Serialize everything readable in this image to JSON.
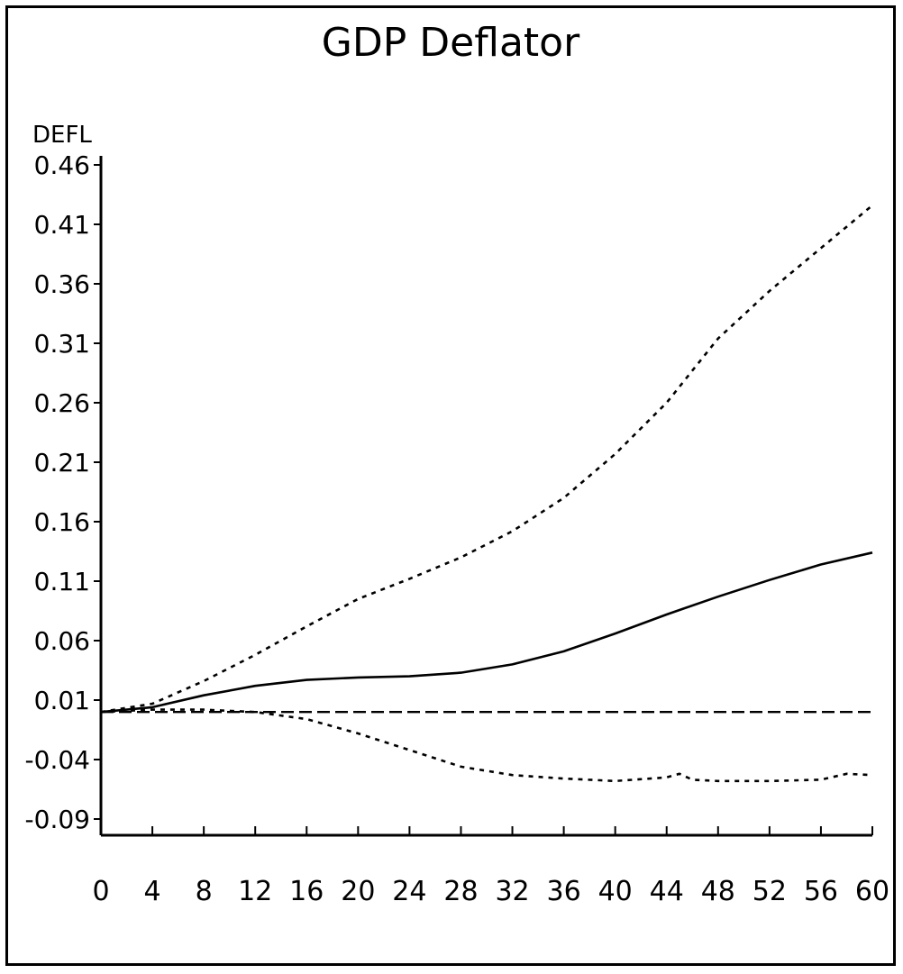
{
  "chart_data": {
    "type": "line",
    "title": "GDP Deflator",
    "ylabel": "DEFL",
    "xlabel": "",
    "xlim": [
      0,
      60
    ],
    "ylim": [
      -0.09,
      0.46
    ],
    "x_ticks": [
      0,
      4,
      8,
      12,
      16,
      20,
      24,
      28,
      32,
      36,
      40,
      44,
      48,
      52,
      56,
      60
    ],
    "x_tick_labels": [
      "0",
      "4",
      "8",
      "12",
      "16",
      "20",
      "24",
      "28",
      "32",
      "36",
      "40",
      "44",
      "48",
      "52",
      "56",
      "60"
    ],
    "y_ticks": [
      -0.09,
      -0.04,
      0.01,
      0.06,
      0.11,
      0.16,
      0.21,
      0.26,
      0.31,
      0.36,
      0.41,
      0.46
    ],
    "y_tick_labels": [
      "-0.09",
      "-0.04",
      "0.01",
      "0.06",
      "0.11",
      "0.16",
      "0.21",
      "0.26",
      "0.31",
      "0.36",
      "0.41",
      "0.46"
    ],
    "grid": false,
    "series": [
      {
        "style": "solid",
        "x": [
          0,
          4,
          8,
          12,
          16,
          20,
          24,
          28,
          32,
          36,
          40,
          44,
          48,
          52,
          56,
          60
        ],
        "values": [
          0.0,
          0.004,
          0.014,
          0.022,
          0.027,
          0.029,
          0.03,
          0.033,
          0.04,
          0.051,
          0.066,
          0.082,
          0.097,
          0.111,
          0.124,
          0.134
        ]
      },
      {
        "style": "dashed-upper",
        "x": [
          0,
          4,
          8,
          12,
          16,
          20,
          24,
          28,
          32,
          36,
          40,
          44,
          48,
          52,
          56,
          60
        ],
        "values": [
          0.0,
          0.007,
          0.026,
          0.048,
          0.072,
          0.095,
          0.112,
          0.13,
          0.152,
          0.18,
          0.217,
          0.26,
          0.314,
          0.354,
          0.39,
          0.426
        ]
      },
      {
        "style": "dashed-lower",
        "x": [
          0,
          4,
          8,
          12,
          16,
          20,
          24,
          28,
          32,
          36,
          40,
          44,
          45,
          46,
          48,
          52,
          56,
          58,
          60
        ],
        "values": [
          0.0,
          0.002,
          0.002,
          0.0,
          -0.006,
          -0.018,
          -0.032,
          -0.046,
          -0.053,
          -0.056,
          -0.058,
          -0.055,
          -0.052,
          -0.057,
          -0.058,
          -0.058,
          -0.057,
          -0.052,
          -0.053
        ]
      },
      {
        "style": "long-dash-zero",
        "x": [
          0,
          60
        ],
        "values": [
          0.0,
          0.0
        ]
      }
    ]
  }
}
